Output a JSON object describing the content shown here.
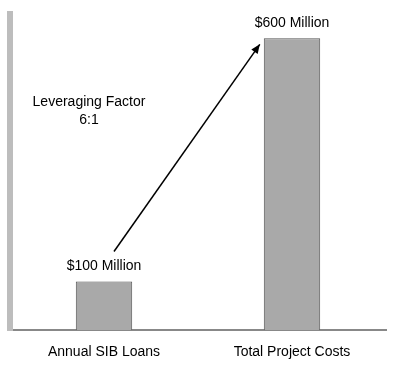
{
  "chart_data": {
    "type": "bar",
    "categories": [
      "Annual SIB Loans",
      "Total Project Costs"
    ],
    "values": [
      100,
      600
    ],
    "value_labels": [
      "$100 Million",
      "$600 Million"
    ],
    "data_labels": true,
    "annotation": [
      "Leveraging Factor",
      "6:1"
    ],
    "color": "#a9a9a9",
    "ylim": [
      0,
      650
    ],
    "grid": false,
    "tick_labels": "x"
  }
}
